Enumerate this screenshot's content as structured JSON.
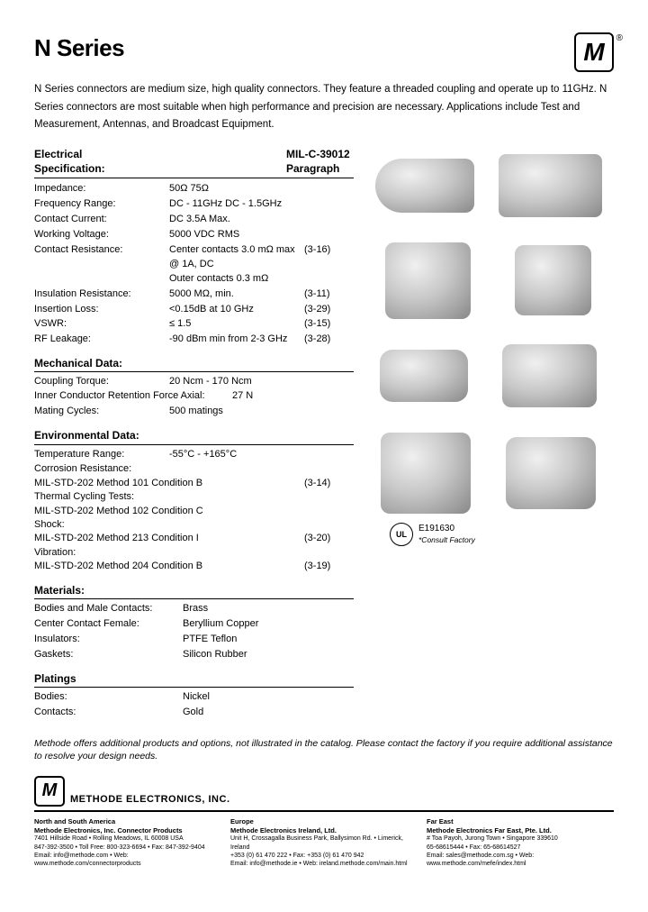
{
  "title": "N Series",
  "logo_letter": "M",
  "intro": "N Series connectors are medium size, high quality connectors. They feature a threaded coupling and operate up to 11GHz. N Series connectors are most suitable when high performance and precision are necessary. Applications include Test and Measurement, Antennas, and Broadcast Equipment.",
  "spec_header": {
    "c1a": "Electrical",
    "c1b": "Specification:",
    "c3a": "MIL-C-39012",
    "c3b": "Paragraph"
  },
  "electrical": [
    {
      "label": "Impedance:",
      "value": "50Ω   75Ω",
      "ref": ""
    },
    {
      "label": "Frequency Range:",
      "value": "DC - 11GHz DC - 1.5GHz",
      "ref": ""
    },
    {
      "label": "Contact Current:",
      "value": "DC 3.5A Max.",
      "ref": ""
    },
    {
      "label": "Working Voltage:",
      "value": "5000 VDC RMS",
      "ref": ""
    },
    {
      "label": "Contact Resistance:",
      "value": "Center contacts 3.0 mΩ max @ 1A, DC\nOuter contacts 0.3 mΩ",
      "ref": "(3-16)"
    },
    {
      "label": "Insulation Resistance:",
      "value": "5000 MΩ, min.",
      "ref": "(3-11)"
    },
    {
      "label": "Insertion Loss:",
      "value": "<0.15dB at 10 GHz",
      "ref": "(3-29)"
    },
    {
      "label": "VSWR:",
      "value": "≤ 1.5",
      "ref": "(3-15)"
    },
    {
      "label": "RF Leakage:",
      "value": "-90 dBm min from 2-3 GHz",
      "ref": "(3-28)"
    }
  ],
  "mech_head": "Mechanical Data:",
  "mechanical": [
    {
      "label": "Coupling Torque:",
      "value": "20 Ncm - 170 Ncm"
    },
    {
      "label": "Inner Conductor Retention Force Axial:",
      "value": "27 N"
    },
    {
      "label": "Mating Cycles:",
      "value": "500 matings"
    }
  ],
  "env_head": "Environmental Data:",
  "env_temp_label": "Temperature Range:",
  "env_temp_value": "-55°C - +165°C",
  "environmental": [
    {
      "label": "Corrosion Resistance:",
      "method": "MIL-STD-202 Method 101 Condition B",
      "ref": "(3-14)"
    },
    {
      "label": "Thermal Cycling Tests:",
      "method": "MIL-STD-202 Method 102 Condition C",
      "ref": ""
    },
    {
      "label": "Shock:",
      "method": "MIL-STD-202 Method 213 Condition I",
      "ref": "(3-20)"
    },
    {
      "label": "Vibration:",
      "method": "MIL-STD-202 Method 204 Condition B",
      "ref": "(3-19)"
    }
  ],
  "mat_head": "Materials:",
  "materials": [
    {
      "label": "Bodies and Male Contacts:",
      "value": "Brass"
    },
    {
      "label": "Center Contact Female:",
      "value": "Beryllium Copper"
    },
    {
      "label": "Insulators:",
      "value": "PTFE Teflon"
    },
    {
      "label": "Gaskets:",
      "value": "Silicon Rubber"
    }
  ],
  "plat_head": "Platings",
  "platings": [
    {
      "label": "Bodies:",
      "value": "Nickel"
    },
    {
      "label": "Contacts:",
      "value": "Gold"
    }
  ],
  "ul": {
    "mark": "UL",
    "code": "E191630",
    "note": "*Consult Factory"
  },
  "footer_note": "Methode offers additional products and options, not illustrated in the catalog. Please contact the factory if you require additional assistance to resolve your design needs.",
  "footer_brand": "METHODE ELECTRONICS, INC.",
  "footer_cols": [
    {
      "region": "North and South America",
      "company": "Methode Electronics, Inc. Connector Products",
      "addr": "7401 Hillside Road • Rolling Meadows, IL 60008 USA",
      "phone": "847-392-3500 • Toll Free: 800-323-6694 • Fax: 847-392-9404",
      "web": "Email: info@methode.com • Web: www.methode.com/connectorproducts"
    },
    {
      "region": "Europe",
      "company": "Methode Electronics Ireland, Ltd.",
      "addr": "Unit H, Crossagalla Business Park, Ballysimon Rd. • Limerick, Ireland",
      "phone": "+353 (0) 61 470 222 • Fax: +353 (0) 61 470 942",
      "web": "Email: info@methode.ie • Web: ireland.methode.com/main.html"
    },
    {
      "region": "Far East",
      "company": "Methode Electronics Far East, Pte. Ltd.",
      "addr": "# Toa Payoh, Jurong Town • Singapore 339610",
      "phone": "65-68615444 • Fax: 65-68614527",
      "web": "Email: sales@methode.com.sg • Web: www.methode.com/mefe/index.html"
    }
  ]
}
